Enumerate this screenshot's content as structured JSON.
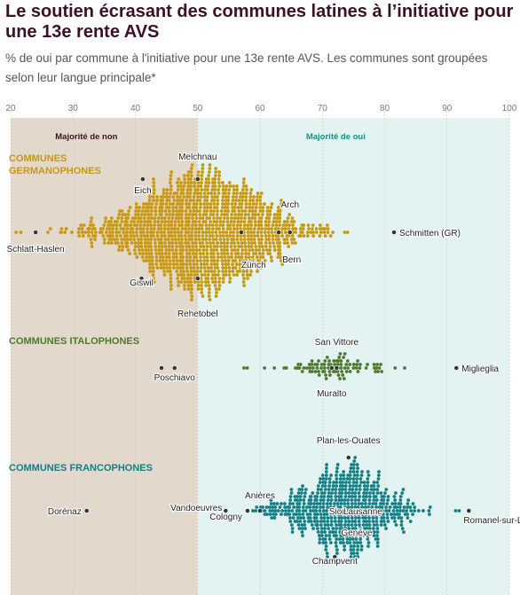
{
  "title": "Le soutien écrasant des communes latines à l’initiative pour une 13e rente AVS",
  "subtitle": "% de oui par commune à l'initiative pour une 13e rente AVS. Les communes sont groupées selon leur langue principale*",
  "colors": {
    "non_bg": "#e2d9cc",
    "oui_bg": "#e3f3f1",
    "germanophones": "#c9980f",
    "italophones": "#4d7a2c",
    "francophones": "#127f86",
    "region_dark": "#3a1224",
    "region_teal": "#16908a"
  },
  "chart_data": {
    "type": "scatter",
    "subtype": "beeswarm",
    "xlim": [
      20,
      100
    ],
    "xticks": [
      20,
      30,
      40,
      50,
      60,
      70,
      80,
      90,
      100
    ],
    "threshold": 50,
    "regions": [
      {
        "label": "Majorité de non",
        "from": 20,
        "to": 50
      },
      {
        "label": "Majorité de oui",
        "from": 50,
        "to": 100
      }
    ],
    "groups": [
      {
        "name": "COMMUNES GERMANOPHONES",
        "color_key": "germanophones",
        "distribution": {
          "mean": 50.5,
          "sd": 8.5,
          "min": 20.5,
          "max": 76,
          "count": 1300
        },
        "highlighted": [
          {
            "label": "Melchnau",
            "value": 50.0
          },
          {
            "label": "Eich",
            "value": 41.2
          },
          {
            "label": "Arch",
            "value": 64.8
          },
          {
            "label": "Schlatt-Haslen",
            "value": 24.0
          },
          {
            "label": "Schmitten (GR)",
            "value": 81.5
          },
          {
            "label": "Bern",
            "value": 63.0
          },
          {
            "label": "Zürich",
            "value": 57.0
          },
          {
            "label": "Giswil",
            "value": 41.0
          },
          {
            "label": "Rehetobel",
            "value": 50.0
          }
        ]
      },
      {
        "name": "COMMUNES ITALOPHONES",
        "color_key": "italophones",
        "distribution": {
          "mean": 71.5,
          "sd": 4.5,
          "min": 56,
          "max": 86.5,
          "count": 95
        },
        "highlighted": [
          {
            "label": "San Vittore",
            "value": 72.3
          },
          {
            "label": "Poschiavo",
            "value": 46.3
          },
          {
            "label": "Muralto",
            "value": 71.5
          },
          {
            "label": "Miglieglia",
            "value": 91.5
          },
          {
            "label": "",
            "value": 44.2
          }
        ]
      },
      {
        "name": "COMMUNES FRANCOPHONES",
        "color_key": "francophones",
        "distribution": {
          "mean": 73.5,
          "sd": 5.5,
          "min": 58,
          "max": 92,
          "count": 600
        },
        "highlighted": [
          {
            "label": "Plan-les-Ouates",
            "value": 74.2
          },
          {
            "label": "Vandoeuvres",
            "value": 54.5
          },
          {
            "label": "Anières",
            "value": 60.0
          },
          {
            "label": "Cologny",
            "value": 58.0
          },
          {
            "label": "Sion",
            "value": 72.5
          },
          {
            "label": "Lausanne",
            "value": 76.5
          },
          {
            "label": "Genève",
            "value": 75.5
          },
          {
            "label": "Champvent",
            "value": 72.0
          },
          {
            "label": "Dorénaz",
            "value": 32.2
          },
          {
            "label": "Romanel-sur-Lausanne",
            "value": 93.5
          }
        ]
      }
    ]
  }
}
